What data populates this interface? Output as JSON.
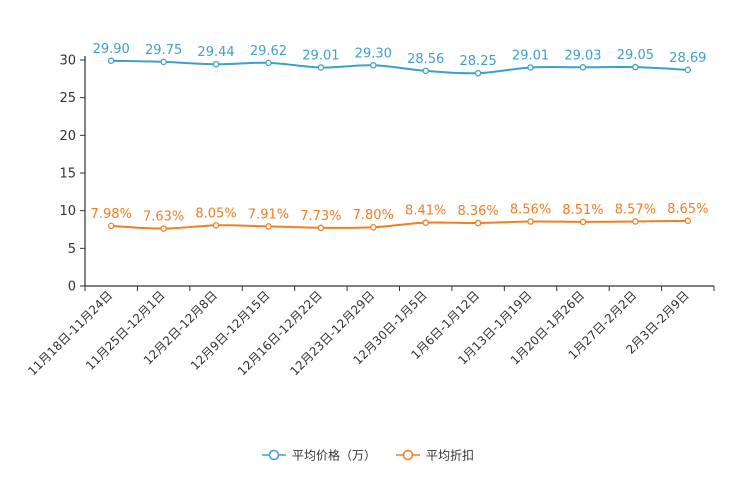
{
  "chart_data": {
    "type": "line",
    "title": "",
    "xlabel": "",
    "ylabel": "",
    "ylim": [
      0,
      30
    ],
    "yticks": [
      0,
      5,
      10,
      15,
      20,
      25,
      30
    ],
    "grid": false,
    "legend_position": "bottom-center",
    "categories": [
      "11月18日-11月24日",
      "11月25日-12月1日",
      "12月2日-12月8日",
      "12月9日-12月15日",
      "12月16日-12月22日",
      "12月23日-12月29日",
      "12月30日-1月5日",
      "1月6日-1月12日",
      "1月13日-1月19日",
      "1月20日-1月26日",
      "1月27日-2月2日",
      "2月3日-2月9日"
    ],
    "series": [
      {
        "name": "平均价格（万）",
        "color": "#3d9fd0",
        "values": [
          29.9,
          29.75,
          29.44,
          29.62,
          29.01,
          29.3,
          28.56,
          28.25,
          29.01,
          29.03,
          29.05,
          28.69
        ],
        "labels": [
          "29.90",
          "29.75",
          "29.44",
          "29.62",
          "29.01",
          "29.30",
          "28.56",
          "28.25",
          "29.01",
          "29.03",
          "29.05",
          "28.69"
        ]
      },
      {
        "name": "平均折扣",
        "color": "#f57c1f",
        "values": [
          7.98,
          7.63,
          8.05,
          7.91,
          7.73,
          7.8,
          8.41,
          8.36,
          8.56,
          8.51,
          8.57,
          8.65
        ],
        "labels": [
          "7.98%",
          "7.63%",
          "8.05%",
          "7.91%",
          "7.73%",
          "7.80%",
          "8.41%",
          "8.36%",
          "8.56%",
          "8.51%",
          "8.57%",
          "8.65%"
        ]
      }
    ]
  }
}
